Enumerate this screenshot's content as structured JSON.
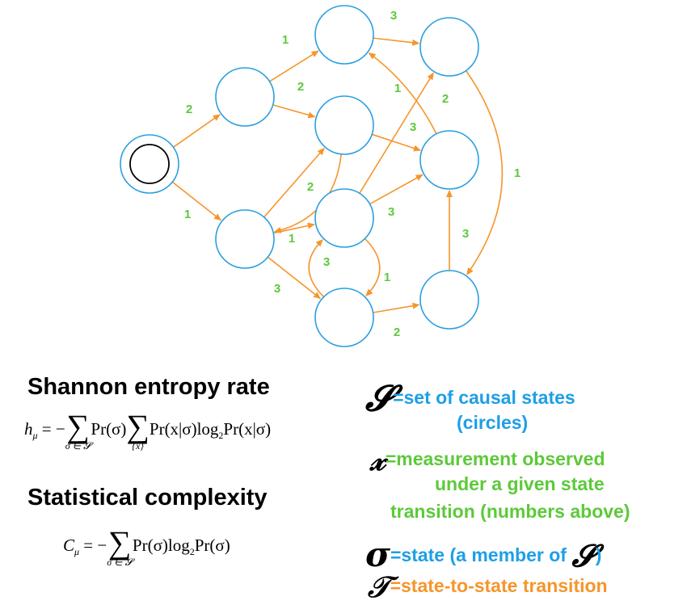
{
  "graph": {
    "colors": {
      "state_circle": "#2a9fe0",
      "start_inner": "#000000",
      "transition": "#f6952b",
      "measurement_label": "#5dc93a"
    },
    "edges": [
      {
        "from": "A",
        "to": "B",
        "label": "2"
      },
      {
        "from": "A",
        "to": "C",
        "label": "1"
      },
      {
        "from": "B",
        "to": "D",
        "label": "1"
      },
      {
        "from": "B",
        "to": "F",
        "label": "2"
      },
      {
        "from": "D",
        "to": "E",
        "label": "3"
      },
      {
        "from": "F",
        "to": "C",
        "label": ""
      },
      {
        "from": "C",
        "to": "F",
        "label": "2"
      },
      {
        "from": "C",
        "to": "G",
        "label": "1"
      },
      {
        "from": "C",
        "to": "H",
        "label": "3"
      },
      {
        "from": "F",
        "to": "I",
        "label": "3"
      },
      {
        "from": "G",
        "to": "I",
        "label": "3"
      },
      {
        "from": "G",
        "to": "E",
        "label": "1"
      },
      {
        "from": "G",
        "to": "H",
        "label": "3"
      },
      {
        "from": "H",
        "to": "G",
        "label": "1"
      },
      {
        "from": "I",
        "to": "D",
        "label": "2"
      },
      {
        "from": "E",
        "to": "J",
        "label": "1"
      },
      {
        "from": "H",
        "to": "J",
        "label": "2"
      },
      {
        "from": "J",
        "to": "I",
        "label": "3"
      }
    ]
  },
  "entropy": {
    "heading": "Shannon entropy rate",
    "lhs": "h",
    "lhs_sub": "μ",
    "eq": " = −",
    "sum1_under": "σ ∈ 𝓢",
    "term1": "Pr(σ)",
    "sum2_under": "{x}",
    "term2": "Pr(x|σ)log",
    "log_base": "2",
    "term3": "Pr(x|σ)"
  },
  "complexity": {
    "heading": "Statistical complexity",
    "lhs": "C",
    "lhs_sub": "μ",
    "eq": " = −",
    "sum_under": "σ ∈ 𝓢",
    "term1": "Pr(σ)log",
    "log_base": "2",
    "term2": "Pr(σ)"
  },
  "legend": {
    "states_symbol": "𝓢",
    "states_text": "=set of causal states",
    "states_text_2": "(circles)",
    "measurement_symbol": "𝓍",
    "measurement_text": "=measurement observed",
    "measurement_text_2": "under a given state",
    "measurement_text_3": "transition (numbers above)",
    "state_symbol": "σ",
    "state_text": "=state (a member of",
    "state_member_symbol": "𝓢",
    "state_close": ")",
    "transition_symbol": "𝒯",
    "transition_text": "=state-to-state transition"
  }
}
